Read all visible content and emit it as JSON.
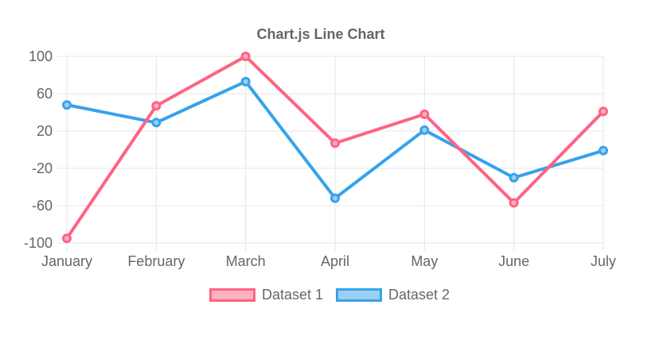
{
  "title": "Chart.js Line Chart",
  "chart_data": {
    "type": "line",
    "title": "Chart.js Line Chart",
    "categories": [
      "January",
      "February",
      "March",
      "April",
      "May",
      "June",
      "July"
    ],
    "series": [
      {
        "name": "Dataset 1",
        "color": "#ff6384",
        "fill_color": "#ffb1c1",
        "values": [
          -95,
          47,
          100,
          7,
          38,
          -57,
          41
        ]
      },
      {
        "name": "Dataset 2",
        "color": "#36a2eb",
        "fill_color": "#9bd0f5",
        "values": [
          48,
          29,
          73,
          -52,
          21,
          -30,
          -1
        ]
      }
    ],
    "y_ticks": [
      100,
      60,
      20,
      -20,
      -60,
      -100
    ],
    "ylim": [
      -100,
      100
    ],
    "grid": true,
    "legend_position": "bottom",
    "text_color": "#666666",
    "grid_color": "#e5e5e5"
  }
}
